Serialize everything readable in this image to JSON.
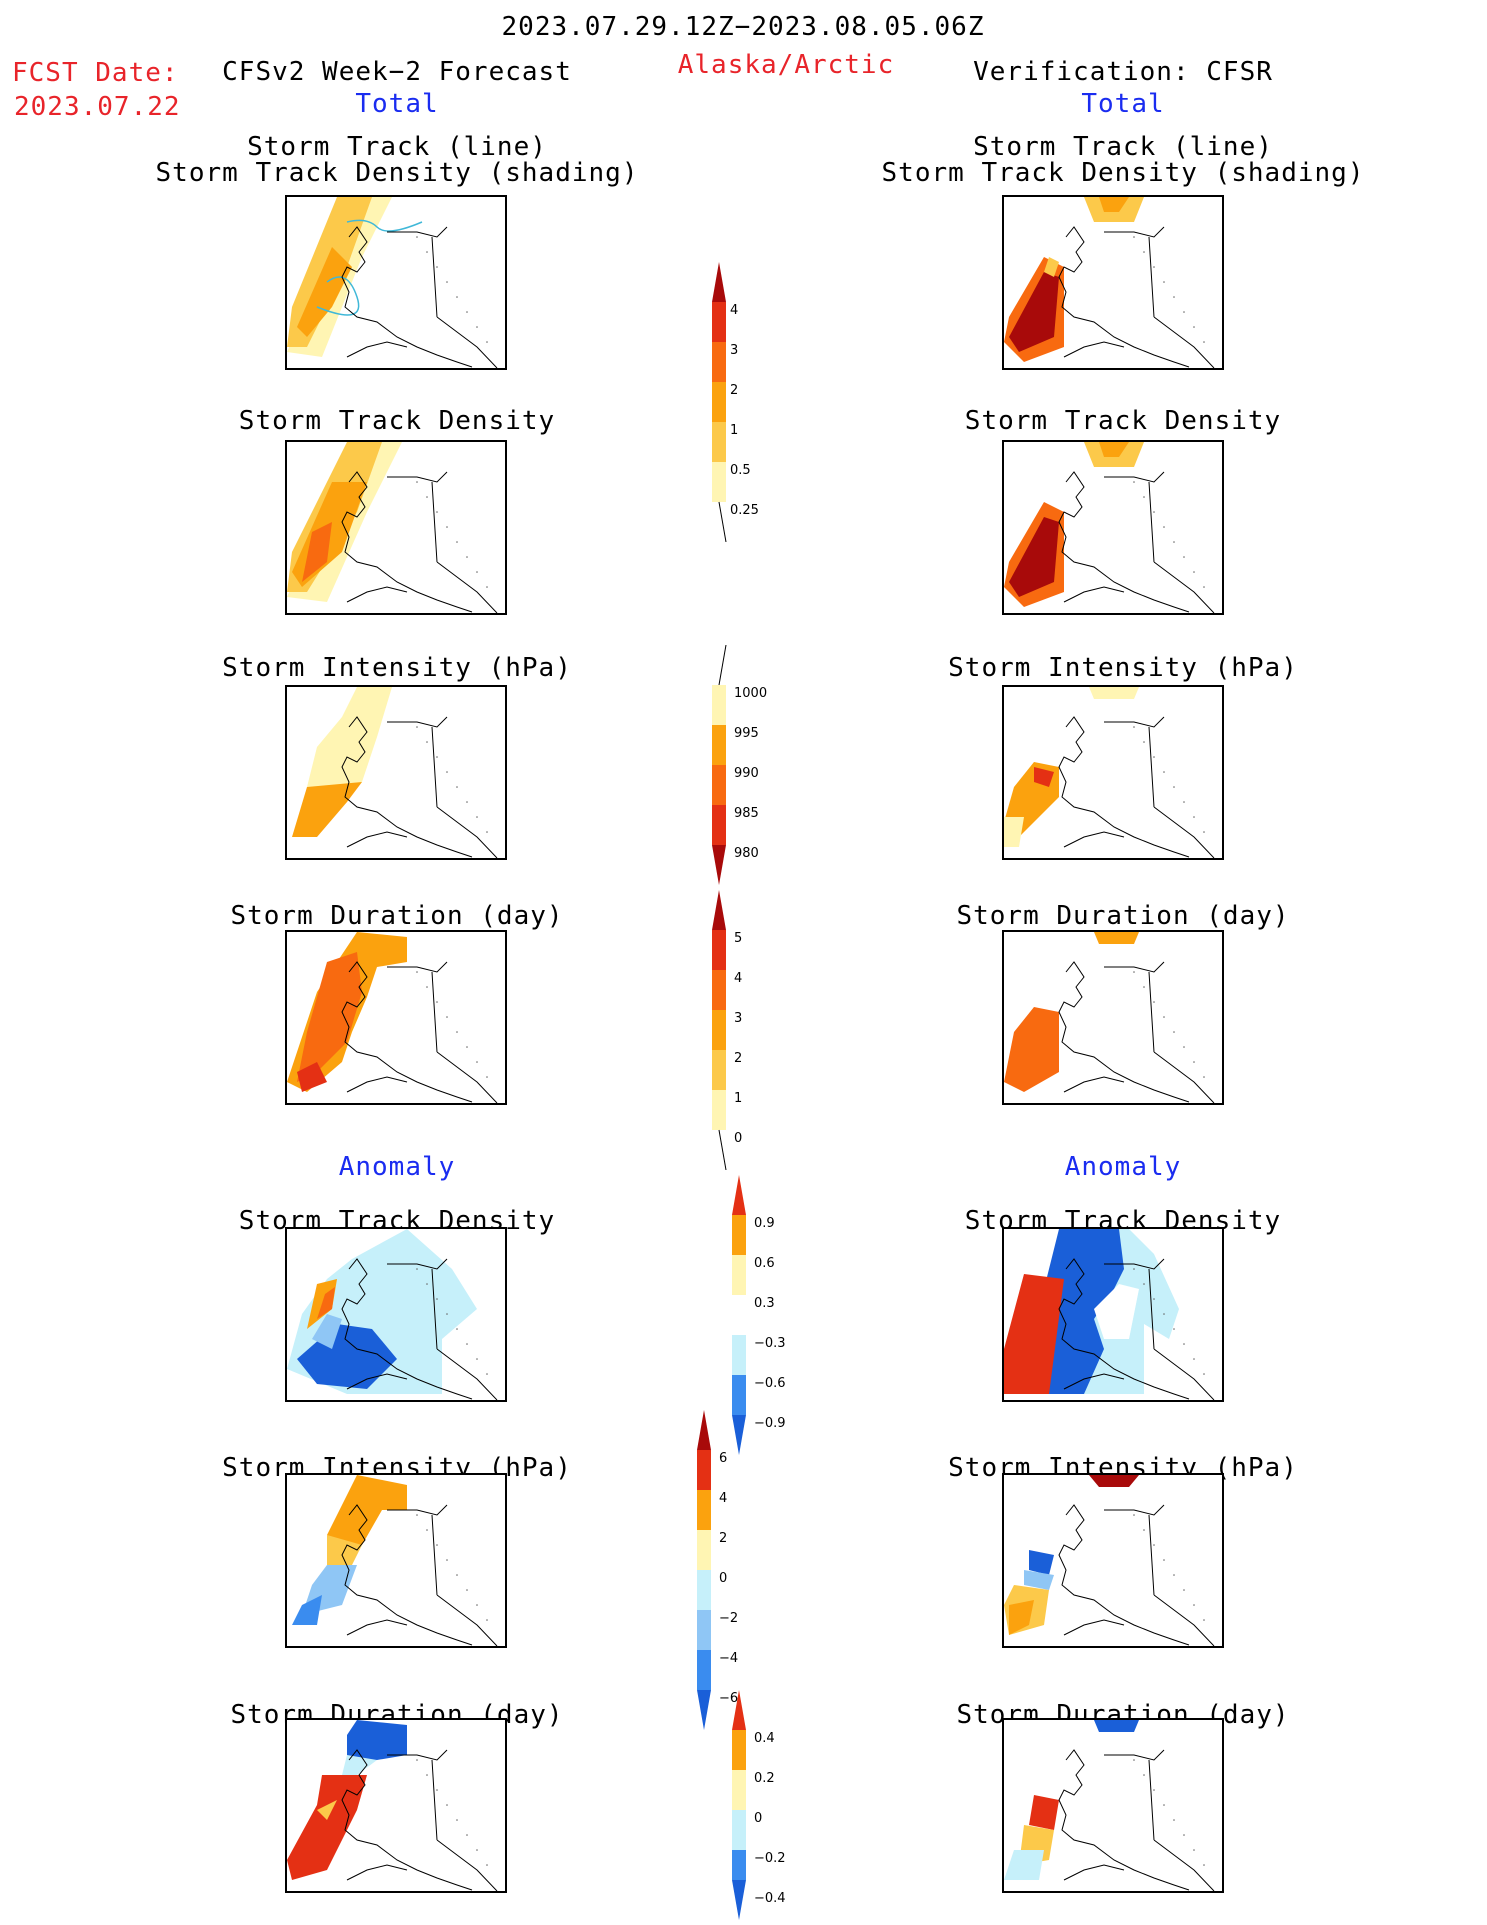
{
  "header": {
    "date_range": "2023.07.29.12Z−2023.08.05.06Z",
    "region": "Alaska/Arctic",
    "fcst_label": "FCST Date:",
    "fcst_date": "2023.07.22",
    "left_title": "CFSv2 Week−2 Forecast",
    "right_title": "Verification: CFSR",
    "total_label": "Total"
  },
  "section": {
    "anomaly_label": "Anomaly"
  },
  "titles": {
    "track_line": "Storm Track (line)",
    "track_shading": "Storm Track Density (shading)",
    "density": "Storm Track Density",
    "intensity": "Storm Intensity (hPa)",
    "duration": "Storm Duration (day)"
  },
  "colorbars": {
    "density_total": [
      "4",
      "3",
      "2",
      "1",
      "0.5",
      "0.25"
    ],
    "intensity_total": [
      "1000",
      "995",
      "990",
      "985",
      "980"
    ],
    "duration_total": [
      "5",
      "4",
      "3",
      "2",
      "1",
      "0"
    ],
    "density_anom": [
      "0.9",
      "0.6",
      "0.3",
      "−0.3",
      "−0.6",
      "−0.9"
    ],
    "intensity_anom": [
      "6",
      "4",
      "2",
      "0",
      "−2",
      "−4",
      "−6"
    ],
    "duration_anom": [
      "0.4",
      "0.2",
      "0",
      "−0.2",
      "−0.4"
    ]
  },
  "colors": {
    "warm": [
      "#fff5b3",
      "#fcc94a",
      "#fba20e",
      "#f86a10",
      "#e43014",
      "#a80a0a"
    ],
    "cool": [
      "#c6f0fa",
      "#8fc6f5",
      "#3a8cef",
      "#1a5fd8"
    ]
  }
}
